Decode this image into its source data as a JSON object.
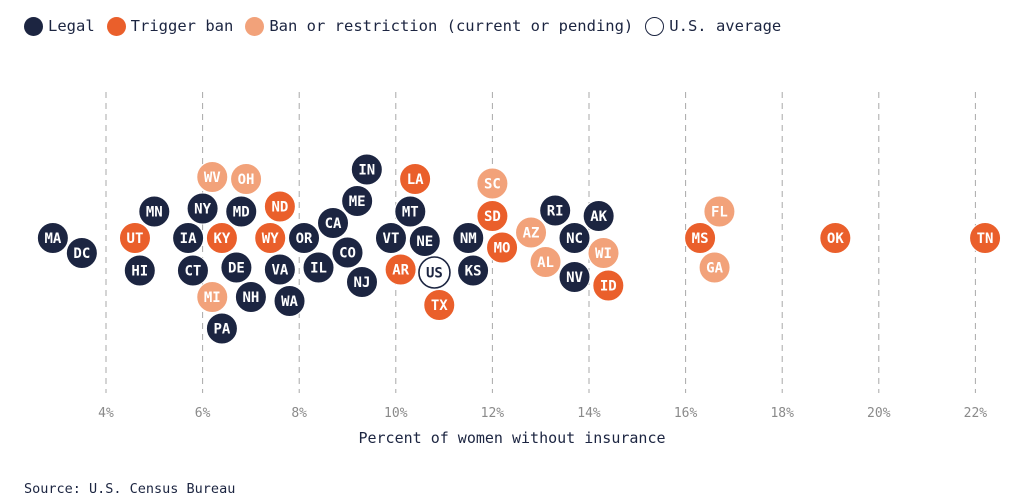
{
  "colors": {
    "legal": "#1c2541",
    "trigger": "#ea5f2b",
    "restricted": "#f2a27a",
    "average_fill": "#ffffff",
    "average_stroke": "#1c2541",
    "grid": "#a9a9a9",
    "tick_text": "#8a8a8a",
    "axis_text": "#1c2541"
  },
  "legend": [
    {
      "key": "legal",
      "label": "Legal"
    },
    {
      "key": "trigger",
      "label": "Trigger ban"
    },
    {
      "key": "restricted",
      "label": "Ban or restriction (current or pending)"
    },
    {
      "key": "average",
      "label": "U.S. average"
    }
  ],
  "source": "Source: U.S. Census Bureau",
  "chart_data": {
    "type": "scatter",
    "xlabel": "Percent of women without insurance",
    "xlim": [
      2.6,
      22.6
    ],
    "x_ticks": [
      4,
      6,
      8,
      10,
      12,
      14,
      16,
      18,
      20,
      22
    ],
    "x_tick_labels": [
      "4%",
      "6%",
      "8%",
      "10%",
      "12%",
      "14%",
      "16%",
      "18%",
      "20%",
      "22%"
    ],
    "grid": "vertical dashed",
    "legend_position": "top-left",
    "points": [
      {
        "label": "MA",
        "x": 2.9,
        "status": "legal"
      },
      {
        "label": "DC",
        "x": 3.5,
        "status": "legal"
      },
      {
        "label": "UT",
        "x": 4.6,
        "status": "trigger"
      },
      {
        "label": "HI",
        "x": 4.7,
        "status": "legal"
      },
      {
        "label": "MN",
        "x": 5.0,
        "status": "legal"
      },
      {
        "label": "IA",
        "x": 5.7,
        "status": "legal"
      },
      {
        "label": "CT",
        "x": 5.8,
        "status": "legal"
      },
      {
        "label": "NY",
        "x": 6.0,
        "status": "legal"
      },
      {
        "label": "MI",
        "x": 6.2,
        "status": "restricted"
      },
      {
        "label": "WV",
        "x": 6.2,
        "status": "restricted"
      },
      {
        "label": "KY",
        "x": 6.4,
        "status": "trigger"
      },
      {
        "label": "PA",
        "x": 6.4,
        "status": "legal"
      },
      {
        "label": "DE",
        "x": 6.7,
        "status": "legal"
      },
      {
        "label": "MD",
        "x": 6.8,
        "status": "legal"
      },
      {
        "label": "OH",
        "x": 6.9,
        "status": "restricted"
      },
      {
        "label": "NH",
        "x": 7.0,
        "status": "legal"
      },
      {
        "label": "WY",
        "x": 7.4,
        "status": "trigger"
      },
      {
        "label": "VA",
        "x": 7.6,
        "status": "legal"
      },
      {
        "label": "ND",
        "x": 7.6,
        "status": "trigger"
      },
      {
        "label": "WA",
        "x": 7.8,
        "status": "legal"
      },
      {
        "label": "OR",
        "x": 8.1,
        "status": "legal"
      },
      {
        "label": "IL",
        "x": 8.4,
        "status": "legal"
      },
      {
        "label": "CA",
        "x": 8.7,
        "status": "legal"
      },
      {
        "label": "CO",
        "x": 9.0,
        "status": "legal"
      },
      {
        "label": "ME",
        "x": 9.2,
        "status": "legal"
      },
      {
        "label": "NJ",
        "x": 9.3,
        "status": "legal"
      },
      {
        "label": "IN",
        "x": 9.4,
        "status": "legal"
      },
      {
        "label": "VT",
        "x": 9.9,
        "status": "legal"
      },
      {
        "label": "AR",
        "x": 10.1,
        "status": "trigger"
      },
      {
        "label": "MT",
        "x": 10.3,
        "status": "legal"
      },
      {
        "label": "LA",
        "x": 10.4,
        "status": "trigger"
      },
      {
        "label": "NE",
        "x": 10.6,
        "status": "legal"
      },
      {
        "label": "US",
        "x": 10.8,
        "status": "average"
      },
      {
        "label": "TX",
        "x": 10.9,
        "status": "trigger"
      },
      {
        "label": "NM",
        "x": 11.5,
        "status": "legal"
      },
      {
        "label": "KS",
        "x": 11.6,
        "status": "legal"
      },
      {
        "label": "SD",
        "x": 12.0,
        "status": "trigger"
      },
      {
        "label": "SC",
        "x": 12.0,
        "status": "restricted"
      },
      {
        "label": "MO",
        "x": 12.2,
        "status": "trigger"
      },
      {
        "label": "AZ",
        "x": 12.8,
        "status": "restricted"
      },
      {
        "label": "AL",
        "x": 13.1,
        "status": "restricted"
      },
      {
        "label": "RI",
        "x": 13.3,
        "status": "legal"
      },
      {
        "label": "NC",
        "x": 13.7,
        "status": "legal"
      },
      {
        "label": "NV",
        "x": 13.7,
        "status": "legal"
      },
      {
        "label": "AK",
        "x": 14.2,
        "status": "legal"
      },
      {
        "label": "WI",
        "x": 14.3,
        "status": "restricted"
      },
      {
        "label": "ID",
        "x": 14.4,
        "status": "trigger"
      },
      {
        "label": "MS",
        "x": 16.3,
        "status": "trigger"
      },
      {
        "label": "GA",
        "x": 16.6,
        "status": "restricted"
      },
      {
        "label": "FL",
        "x": 16.7,
        "status": "restricted"
      },
      {
        "label": "OK",
        "x": 19.1,
        "status": "trigger"
      },
      {
        "label": "TN",
        "x": 22.2,
        "status": "trigger"
      }
    ]
  }
}
